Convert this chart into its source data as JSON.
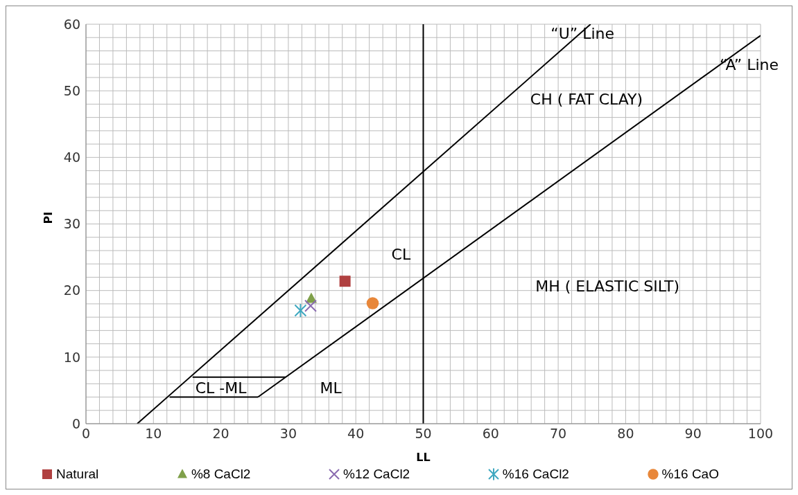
{
  "chart_data": {
    "type": "scatter",
    "xlabel": "LL",
    "ylabel": "PI",
    "xlim": [
      0,
      100
    ],
    "ylim": [
      0,
      60
    ],
    "xticks": [
      0,
      {
        "value": 2,
        "label": null
      },
      {
        "value": 4,
        "label": null
      },
      {
        "value": 6,
        "label": null
      },
      {
        "value": 8,
        "label": null
      },
      10,
      {
        "value": 12,
        "label": null
      },
      {
        "value": 14,
        "label": null
      },
      {
        "value": 16,
        "label": null
      },
      {
        "value": 18,
        "label": null
      },
      20,
      {
        "value": 22,
        "label": null
      },
      {
        "value": 24,
        "label": null
      },
      {
        "value": 26,
        "label": null
      },
      {
        "value": 28,
        "label": null
      },
      30,
      {
        "value": 32,
        "label": null
      },
      {
        "value": 34,
        "label": null
      },
      {
        "value": 36,
        "label": null
      },
      {
        "value": 38,
        "label": null
      },
      40,
      {
        "value": 42,
        "label": null
      },
      {
        "value": 44,
        "label": null
      },
      {
        "value": 46,
        "label": null
      },
      {
        "value": 48,
        "label": null
      },
      50,
      {
        "value": 52,
        "label": null
      },
      {
        "value": 54,
        "label": null
      },
      {
        "value": 56,
        "label": null
      },
      {
        "value": 58,
        "label": null
      },
      60,
      {
        "value": 62,
        "label": null
      },
      {
        "value": 64,
        "label": null
      },
      {
        "value": 66,
        "label": null
      },
      {
        "value": 68,
        "label": null
      },
      70,
      {
        "value": 72,
        "label": null
      },
      {
        "value": 74,
        "label": null
      },
      {
        "value": 76,
        "label": null
      },
      {
        "value": 78,
        "label": null
      },
      80,
      {
        "value": 82,
        "label": null
      },
      {
        "value": 84,
        "label": null
      },
      {
        "value": 86,
        "label": null
      },
      {
        "value": 88,
        "label": null
      },
      90,
      {
        "value": 92,
        "label": null
      },
      {
        "value": 94,
        "label": null
      },
      {
        "value": 96,
        "label": null
      },
      {
        "value": 98,
        "label": null
      },
      100
    ],
    "yticks": [
      0,
      {
        "value": 2,
        "label": null
      },
      {
        "value": 4,
        "label": null
      },
      {
        "value": 6,
        "label": null
      },
      {
        "value": 8,
        "label": null
      },
      10,
      {
        "value": 12,
        "label": null
      },
      {
        "value": 14,
        "label": null
      },
      {
        "value": 16,
        "label": null
      },
      {
        "value": 18,
        "label": null
      },
      20,
      {
        "value": 22,
        "label": null
      },
      {
        "value": 24,
        "label": null
      },
      {
        "value": 26,
        "label": null
      },
      {
        "value": 28,
        "label": null
      },
      30,
      {
        "value": 32,
        "label": null
      },
      {
        "value": 34,
        "label": null
      },
      {
        "value": 36,
        "label": null
      },
      {
        "value": 38,
        "label": null
      },
      40,
      {
        "value": 42,
        "label": null
      },
      {
        "value": 44,
        "label": null
      },
      {
        "value": 46,
        "label": null
      },
      {
        "value": 48,
        "label": null
      },
      50,
      {
        "value": 52,
        "label": null
      },
      {
        "value": 54,
        "label": null
      },
      {
        "value": 56,
        "label": null
      },
      {
        "value": 58,
        "label": null
      },
      60
    ],
    "grid": true,
    "legend": "bottom",
    "series": [
      {
        "name": "Natural",
        "color": "#b04040",
        "marker": "square",
        "x": [
          38.4
        ],
        "values": [
          21.4
        ]
      },
      {
        "name": "%8 CaCl2",
        "color": "#7fa04a",
        "marker": "triangle",
        "x": [
          33.4
        ],
        "values": [
          18.8
        ]
      },
      {
        "name": "%12 CaCl2",
        "color": "#8a6bb0",
        "marker": "cross",
        "x": [
          33.3
        ],
        "values": [
          17.7
        ]
      },
      {
        "name": "%16 CaCl2",
        "color": "#3fa8c0",
        "x": [
          31.8
        ],
        "values": [
          17.0
        ]
      },
      {
        "name": "%16 CaO",
        "color": "#e8873a",
        "marker": "circle",
        "x": [
          42.5
        ],
        "values": [
          18.1
        ]
      },
      {
        "type": "line",
        "color": "#000000",
        "marker": "none",
        "x": [
          7.6,
          74.8
        ],
        "values": [
          0,
          60
        ]
      },
      {
        "type": "line",
        "color": "#000000",
        "marker": "none",
        "x": [
          25.5,
          100
        ],
        "values": [
          4,
          58.3
        ]
      },
      {
        "type": "line",
        "color": "#000000",
        "marker": "none",
        "x": [
          12.4,
          25.5
        ],
        "values": [
          4,
          4
        ]
      },
      {
        "type": "line",
        "color": "#000000",
        "marker": "none",
        "x": [
          15.8,
          29.6
        ],
        "values": [
          7,
          7
        ]
      }
    ],
    "ref_lines": [
      {
        "axis": "x",
        "value": 50,
        "color": "#000000"
      }
    ],
    "annotations": [
      {
        "text": "“U” Line",
        "x": 73.6,
        "y": 58.6
      },
      "“A” Line",
      "CH ( FAT CLAY)",
      "CL",
      "MH ( ELASTIC SILT)",
      "CL -ML",
      "ML"
    ]
  }
}
